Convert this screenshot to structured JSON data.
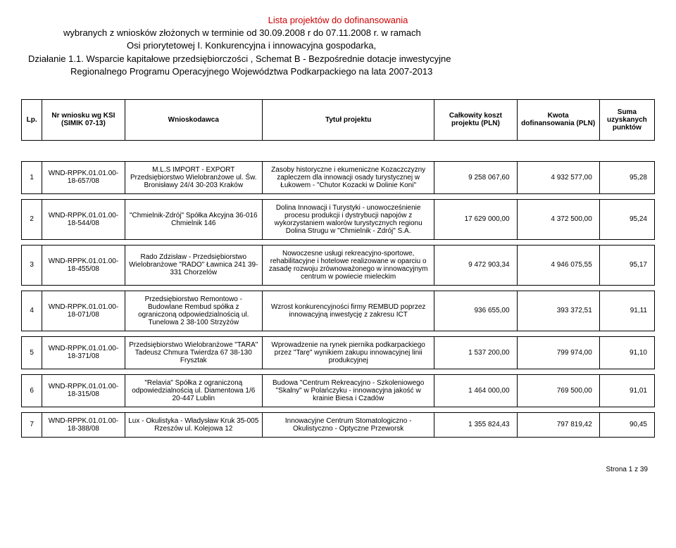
{
  "header": {
    "line1": "Lista projektów do dofinansowania",
    "line2": "wybranych z wniosków złożonych w terminie od 30.09.2008 r do 07.11.2008 r. w ramach",
    "line3": "Osi priorytetowej I. Konkurencyjna i innowacyjna gospodarka,",
    "line4": "Działanie 1.1. Wsparcie kapitałowe przedsiębiorczości , Schemat B - Bezpośrednie dotacje inwestycyjne",
    "line5": "Regionalnego Programu Operacyjnego Województwa Podkarpackiego na lata 2007-2013"
  },
  "columns": {
    "lp": "Lp.",
    "nr": "Nr wniosku wg KSI (SIMIK 07-13)",
    "wn": "Wnioskodawca",
    "ty": "Tytuł projektu",
    "ck": "Całkowity koszt projektu (PLN)",
    "kd": "Kwota dofinansowania (PLN)",
    "sp": "Suma uzyskanych punktów"
  },
  "rows": [
    {
      "lp": "1",
      "nr": "WND-RPPK.01.01.00-18-657/08",
      "wn": "M.L.S IMPORT - EXPORT Przedsiębiorstwo Wielobranżowe ul. Św. Bronisławy 24/4 30-203 Kraków",
      "ty": "Zasoby historyczne i ekumeniczne Kozaczczyzny zapleczem dla innowacji osady turystycznej w Łukowem - \"Chutor Kozacki w Dolinie Koni\"",
      "ck": "9 258 067,60",
      "kd": "4 932 577,00",
      "sp": "95,28"
    },
    {
      "lp": "2",
      "nr": "WND-RPPK.01.01.00-18-544/08",
      "wn": "\"Chmielnik-Zdrój\" Spółka Akcyjna 36-016 Chmielnik 146",
      "ty": "Dolina Innowacji i Turystyki - unowocześnienie procesu produkcji i dystrybucji napojów z wykorzystaniem walorów turystycznych regionu Dolina Strugu w \"Chmielnik - Zdrój\" S.A.",
      "ck": "17 629 000,00",
      "kd": "4 372 500,00",
      "sp": "95,24"
    },
    {
      "lp": "3",
      "nr": "WND-RPPK.01.01.00-18-455/08",
      "wn": "Rado Zdzisław - Przedsiębiorstwo Wielobranżowe \"RADO\"\nŁawnica 241\n39-331 Chorzelów",
      "ty": "Nowoczesne usługi rekreacyjno-sportowe, rehabilitacyjne i hotelowe realizowane w oparciu o zasadę rozwoju zrównoważonego w innowacyjnym centrum w powiecie mieleckim",
      "ck": "9 472 903,34",
      "kd": "4 946 075,55",
      "sp": "95,17"
    },
    {
      "lp": "4",
      "nr": "WND-RPPK.01.01.00-18-071/08",
      "wn": "Przedsiębiorstwo Remontowo - Budowlane Rembud spółka z ograniczoną odpowiedzialnością ul. Tunelowa 2 38-100 Strzyżów",
      "ty": "Wzrost konkurencyjności firmy REMBUD poprzez innowacyjną inwestycję z zakresu ICT",
      "ck": "936 655,00",
      "kd": "393 372,51",
      "sp": "91,11"
    },
    {
      "lp": "5",
      "nr": "WND-RPPK.01.01.00-18-371/08",
      "wn": "Przedsiębiorstwo Wielobranżowe \"TARA\" Tadeusz Chmura Twierdza 67\n38-130 Frysztak",
      "ty": "Wprowadzenie na rynek piernika podkarpackiego przez \"Tarę\" wynikiem zakupu innowacyjnej linii produkcyjnej",
      "ck": "1 537 200,00",
      "kd": "799 974,00",
      "sp": "91,10"
    },
    {
      "lp": "6",
      "nr": "WND-RPPK.01.01.00-18-315/08",
      "wn": "\"Relavia\" Spółka z ograniczoną odpowiedzialnością ul. Diamentowa 1/6 20-447 Lublin",
      "ty": "Budowa \"Centrum Rekreacyjno - Szkoleniowego \"Skalny\" w Polańczyku - innowacyjna jakość w krainie Biesa i Czadów",
      "ck": "1 464 000,00",
      "kd": "769 500,00",
      "sp": "91,01"
    },
    {
      "lp": "7",
      "nr": "WND-RPPK.01.01.00-18-388/08",
      "wn": "Lux - Okulistyka - Władysław Kruk 35-005 Rzeszów ul. Kolejowa 12",
      "ty": "Innowacyjne Centrum Stomatologiczno - Okulistyczno - Optyczne Przeworsk",
      "ck": "1 355 824,43",
      "kd": "797 819,42",
      "sp": "90,45"
    }
  ],
  "footer": "Strona 1 z 39"
}
